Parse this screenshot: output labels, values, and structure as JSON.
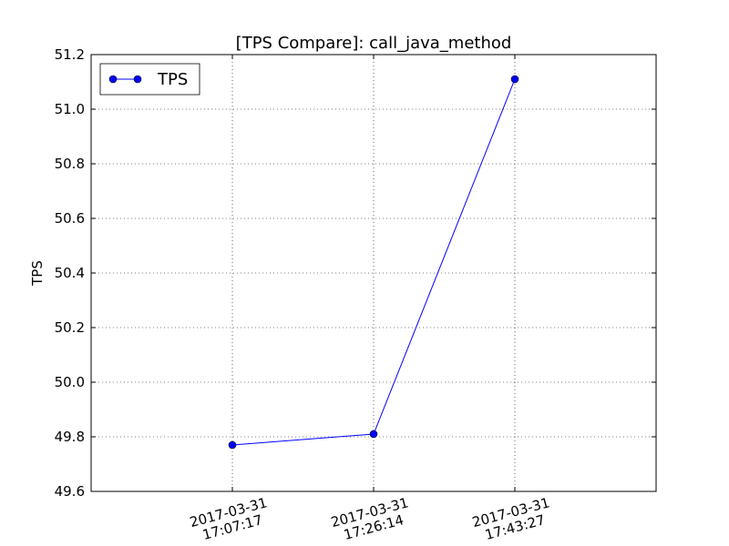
{
  "chart_data": {
    "type": "line",
    "title": "[TPS Compare]: call_java_method",
    "xlabel": "",
    "ylabel": "TPS",
    "categories": [
      [
        "2017-03-31",
        "17:07:17"
      ],
      [
        "2017-03-31",
        "17:26:14"
      ],
      [
        "2017-03-31",
        "17:43:27"
      ]
    ],
    "series": [
      {
        "name": "TPS",
        "values": [
          49.77,
          49.81,
          51.11
        ],
        "color": "#0000ff"
      }
    ],
    "ylim": [
      49.6,
      51.2
    ],
    "yticks": [
      "49.6",
      "49.8",
      "50.0",
      "50.2",
      "50.4",
      "50.6",
      "50.8",
      "51.0",
      "51.2"
    ],
    "grid": true,
    "grid_style": "dotted",
    "legend_position": "top-left",
    "xtick_rotation_deg": -15
  }
}
